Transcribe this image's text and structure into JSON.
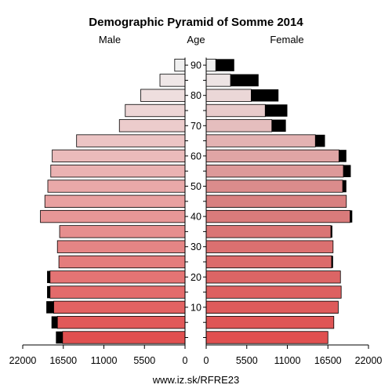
{
  "chart_data": {
    "type": "bar",
    "title": "Demographic Pyramid of Somme 2014",
    "left_label": "Male",
    "center_label": "Age",
    "right_label": "Female",
    "footer": "www.iz.sk/RFRE23",
    "age_groups": [
      "0-4",
      "5-9",
      "10-14",
      "15-19",
      "20-24",
      "25-29",
      "30-34",
      "35-39",
      "40-44",
      "45-49",
      "50-54",
      "55-59",
      "60-64",
      "65-69",
      "70-74",
      "75-79",
      "80-84",
      "85-89",
      "90+"
    ],
    "age_ticks": [
      "10",
      "20",
      "30",
      "40",
      "50",
      "60",
      "70",
      "80",
      "90"
    ],
    "axis_ticks": [
      "22000",
      "16500",
      "11000",
      "5500",
      "0",
      "0",
      "5500",
      "11000",
      "16500",
      "22000"
    ],
    "xlim": [
      0,
      22000
    ],
    "series": [
      {
        "name": "Male",
        "sex": "male",
        "segments": [
          [
            16600,
            900
          ],
          [
            17300,
            800
          ],
          [
            17800,
            1000
          ],
          [
            18300,
            400
          ],
          [
            18300,
            400
          ],
          [
            17100,
            0
          ],
          [
            17300,
            0
          ],
          [
            17000,
            0
          ],
          [
            19600,
            0
          ],
          [
            19000,
            0
          ],
          [
            18600,
            0
          ],
          [
            18200,
            0
          ],
          [
            18000,
            0
          ],
          [
            14700,
            0
          ],
          [
            8900,
            0
          ],
          [
            8100,
            0
          ],
          [
            6000,
            0
          ],
          [
            3400,
            0
          ],
          [
            1400,
            0
          ]
        ]
      },
      {
        "name": "Female",
        "sex": "female",
        "segments": [
          [
            16500,
            0
          ],
          [
            17300,
            0
          ],
          [
            17900,
            0
          ],
          [
            18300,
            0
          ],
          [
            18200,
            0
          ],
          [
            17000,
            200
          ],
          [
            17200,
            0
          ],
          [
            16900,
            200
          ],
          [
            19500,
            300
          ],
          [
            19000,
            0
          ],
          [
            18500,
            500
          ],
          [
            18600,
            1000
          ],
          [
            18000,
            1000
          ],
          [
            14800,
            1300
          ],
          [
            8900,
            1900
          ],
          [
            8000,
            3000
          ],
          [
            6100,
            3700
          ],
          [
            3300,
            3800
          ],
          [
            1300,
            2500
          ]
        ]
      }
    ],
    "colors": {
      "young": "#e05050",
      "old": "#f0f0f0",
      "excess": "#000000",
      "female_mid": "#d88080",
      "outline": "#000000"
    }
  }
}
